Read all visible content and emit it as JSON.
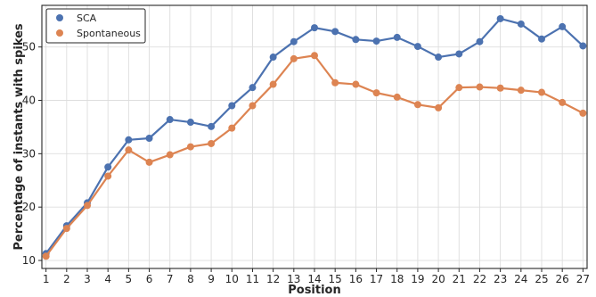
{
  "chart_data": {
    "type": "line",
    "xlabel": "Position",
    "ylabel": "Percentage of instants with spikes",
    "x": [
      1,
      2,
      3,
      4,
      5,
      6,
      7,
      8,
      9,
      10,
      11,
      12,
      13,
      14,
      15,
      16,
      17,
      18,
      19,
      20,
      21,
      22,
      23,
      24,
      25,
      26,
      27
    ],
    "xlim": [
      0.8,
      27.2
    ],
    "ylim": [
      8.5,
      57.8
    ],
    "yticks": [
      10,
      20,
      30,
      40,
      50
    ],
    "grid": true,
    "legend_position": "top-left",
    "series": [
      {
        "name": "SCA",
        "color": "#4c72b0",
        "values": [
          11.3,
          16.5,
          20.8,
          27.5,
          32.6,
          32.9,
          36.4,
          35.9,
          35.1,
          39.0,
          42.4,
          48.1,
          51.0,
          53.6,
          52.9,
          51.4,
          51.1,
          51.8,
          50.1,
          48.1,
          48.7,
          51.0,
          55.3,
          54.3,
          51.5,
          53.8,
          50.2
        ]
      },
      {
        "name": "Spontaneous",
        "color": "#dd8452",
        "values": [
          10.8,
          16.0,
          20.3,
          25.8,
          30.7,
          28.4,
          29.8,
          31.3,
          31.9,
          34.8,
          39.0,
          43.0,
          47.8,
          48.4,
          43.3,
          43.0,
          41.4,
          40.6,
          39.2,
          38.6,
          42.4,
          42.5,
          42.3,
          41.9,
          41.5,
          39.6,
          37.6
        ]
      }
    ]
  }
}
